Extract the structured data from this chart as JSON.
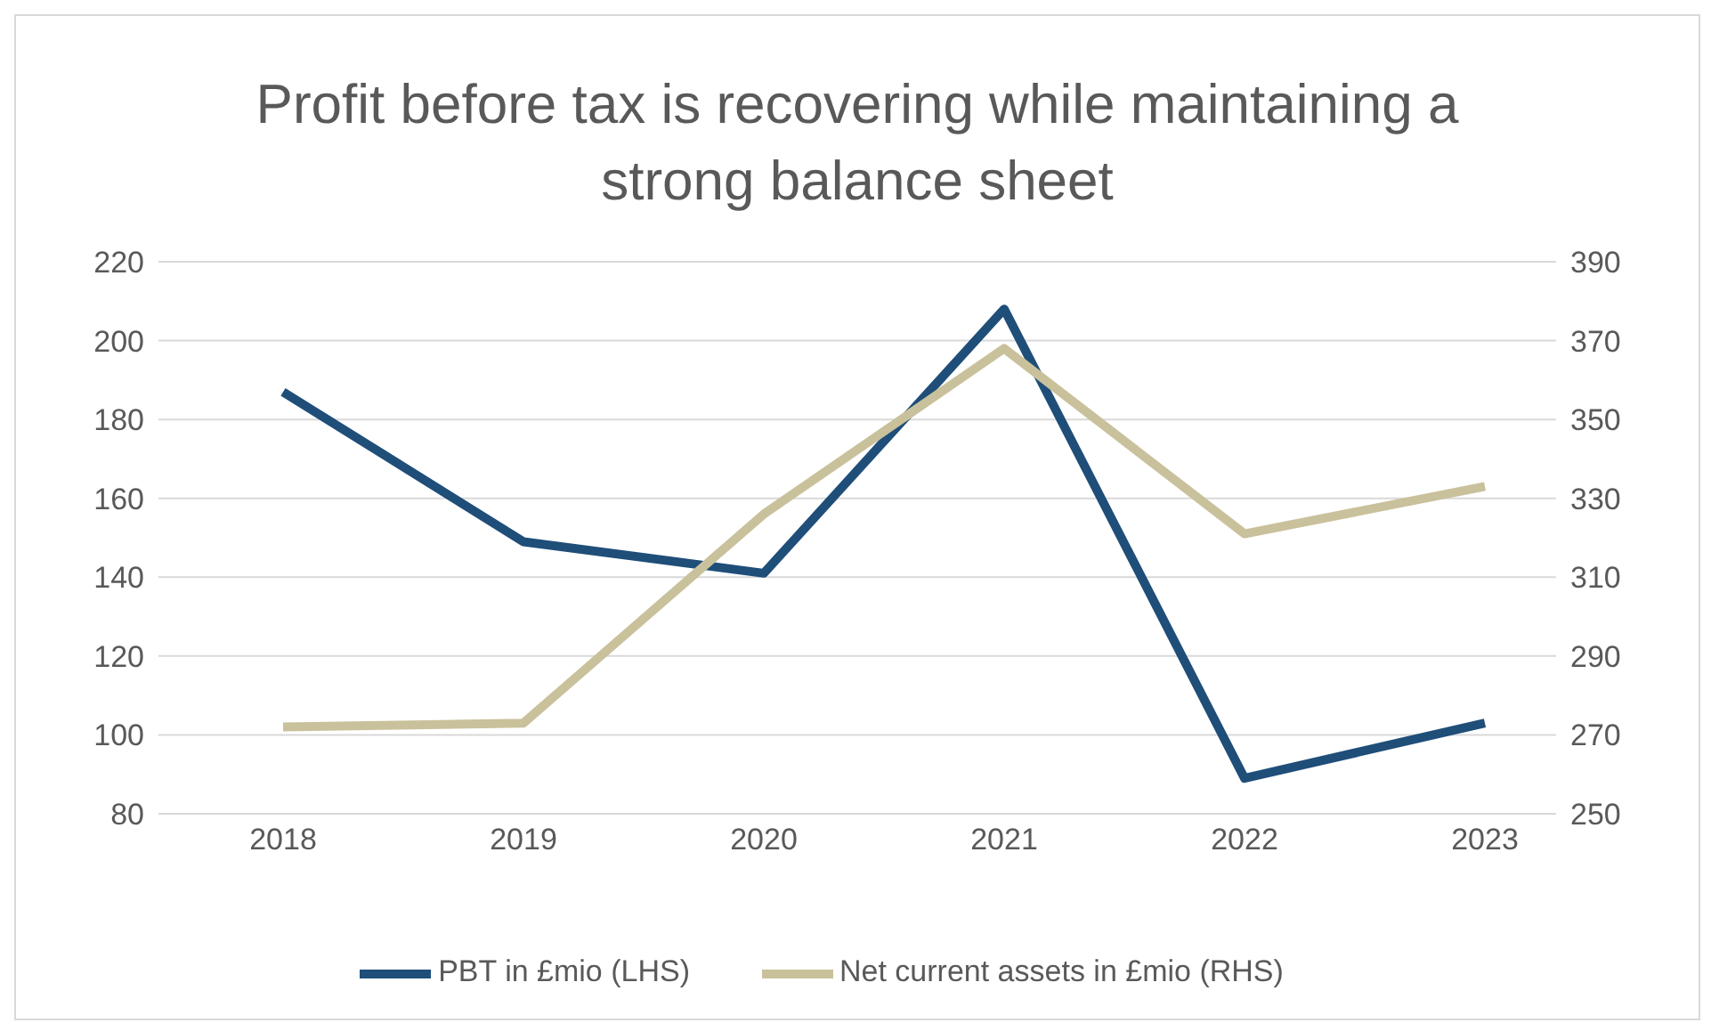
{
  "chart_data": {
    "type": "line",
    "title": "Profit before tax is recovering while maintaining a strong balance sheet",
    "categories": [
      "2018",
      "2019",
      "2020",
      "2021",
      "2022",
      "2023"
    ],
    "series": [
      {
        "name": "PBT in £mio (LHS)",
        "color": "#1f4e79",
        "values": [
          187,
          149,
          141,
          208,
          89,
          103
        ]
      },
      {
        "name": "Net current assets in £mio (RHS)",
        "color": "#c9c19b",
        "values": [
          272,
          273,
          326,
          368,
          321,
          333
        ],
        "axis": "y2"
      }
    ],
    "ylim": [
      80,
      220
    ],
    "yticks": [
      80,
      100,
      120,
      140,
      160,
      180,
      200,
      220
    ],
    "y2lim": [
      250,
      390
    ],
    "y2ticks": [
      250,
      270,
      290,
      310,
      330,
      350,
      370,
      390
    ],
    "grid": "y",
    "legend": "bottom",
    "marker": "none",
    "line_style": "solid"
  }
}
